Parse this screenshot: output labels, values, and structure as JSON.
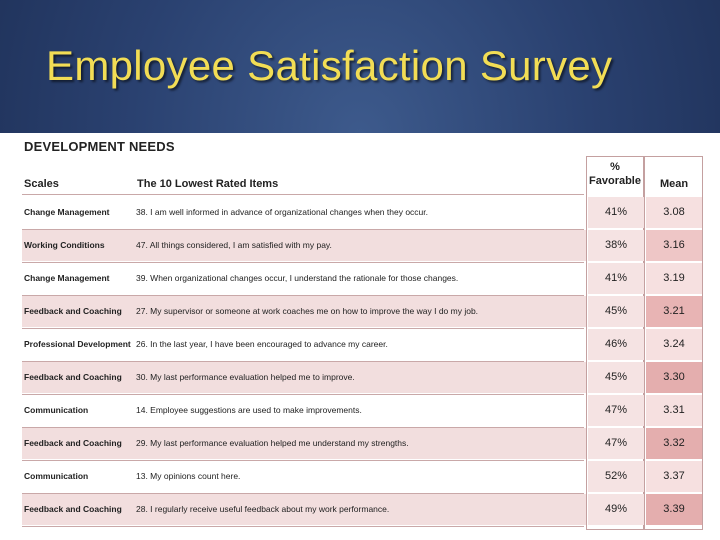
{
  "slide": {
    "title": "Employee Satisfaction Survey"
  },
  "table": {
    "section_title": "DEVELOPMENT NEEDS",
    "headers": {
      "scales": "Scales",
      "items": "The 10 Lowest Rated Items",
      "favorable_line1": "%",
      "favorable_line2": "Favorable",
      "mean": "Mean"
    },
    "rows": [
      {
        "scale": "Change Management",
        "item": "38. I am well informed in advance of organizational changes when they occur.",
        "favorable": "41%",
        "mean": "3.08",
        "mean_color": "#f6e0e0"
      },
      {
        "scale": "Working Conditions",
        "item": "47. All things considered, I am satisfied with my pay.",
        "favorable": "38%",
        "mean": "3.16",
        "mean_color": "#eec6c6"
      },
      {
        "scale": "Change Management",
        "item": "39. When organizational changes occur, I understand the rationale for those changes.",
        "favorable": "41%",
        "mean": "3.19",
        "mean_color": "#f6e0e0"
      },
      {
        "scale": "Feedback and Coaching",
        "item": "27. My supervisor or someone at work coaches me on how to improve the way I do my job.",
        "favorable": "45%",
        "mean": "3.21",
        "mean_color": "#e8b4b4"
      },
      {
        "scale": "Professional Development",
        "item": "26. In the last year, I have been encouraged to advance my career.",
        "favorable": "46%",
        "mean": "3.24",
        "mean_color": "#f6e0e0"
      },
      {
        "scale": "Feedback and Coaching",
        "item": "30. My last performance evaluation helped me to improve.",
        "favorable": "45%",
        "mean": "3.30",
        "mean_color": "#e4aeae"
      },
      {
        "scale": "Communication",
        "item": "14. Employee suggestions are used to make improvements.",
        "favorable": "47%",
        "mean": "3.31",
        "mean_color": "#f6e0e0"
      },
      {
        "scale": "Feedback and Coaching",
        "item": "29. My last performance evaluation helped me understand my strengths.",
        "favorable": "47%",
        "mean": "3.32",
        "mean_color": "#e4aeae"
      },
      {
        "scale": "Communication",
        "item": "13. My opinions count here.",
        "favorable": "52%",
        "mean": "3.37",
        "mean_color": "#f6e0e0"
      },
      {
        "scale": "Feedback and Coaching",
        "item": "28. I regularly receive useful feedback about my work performance.",
        "favorable": "49%",
        "mean": "3.39",
        "mean_color": "#e4aeae"
      }
    ]
  }
}
